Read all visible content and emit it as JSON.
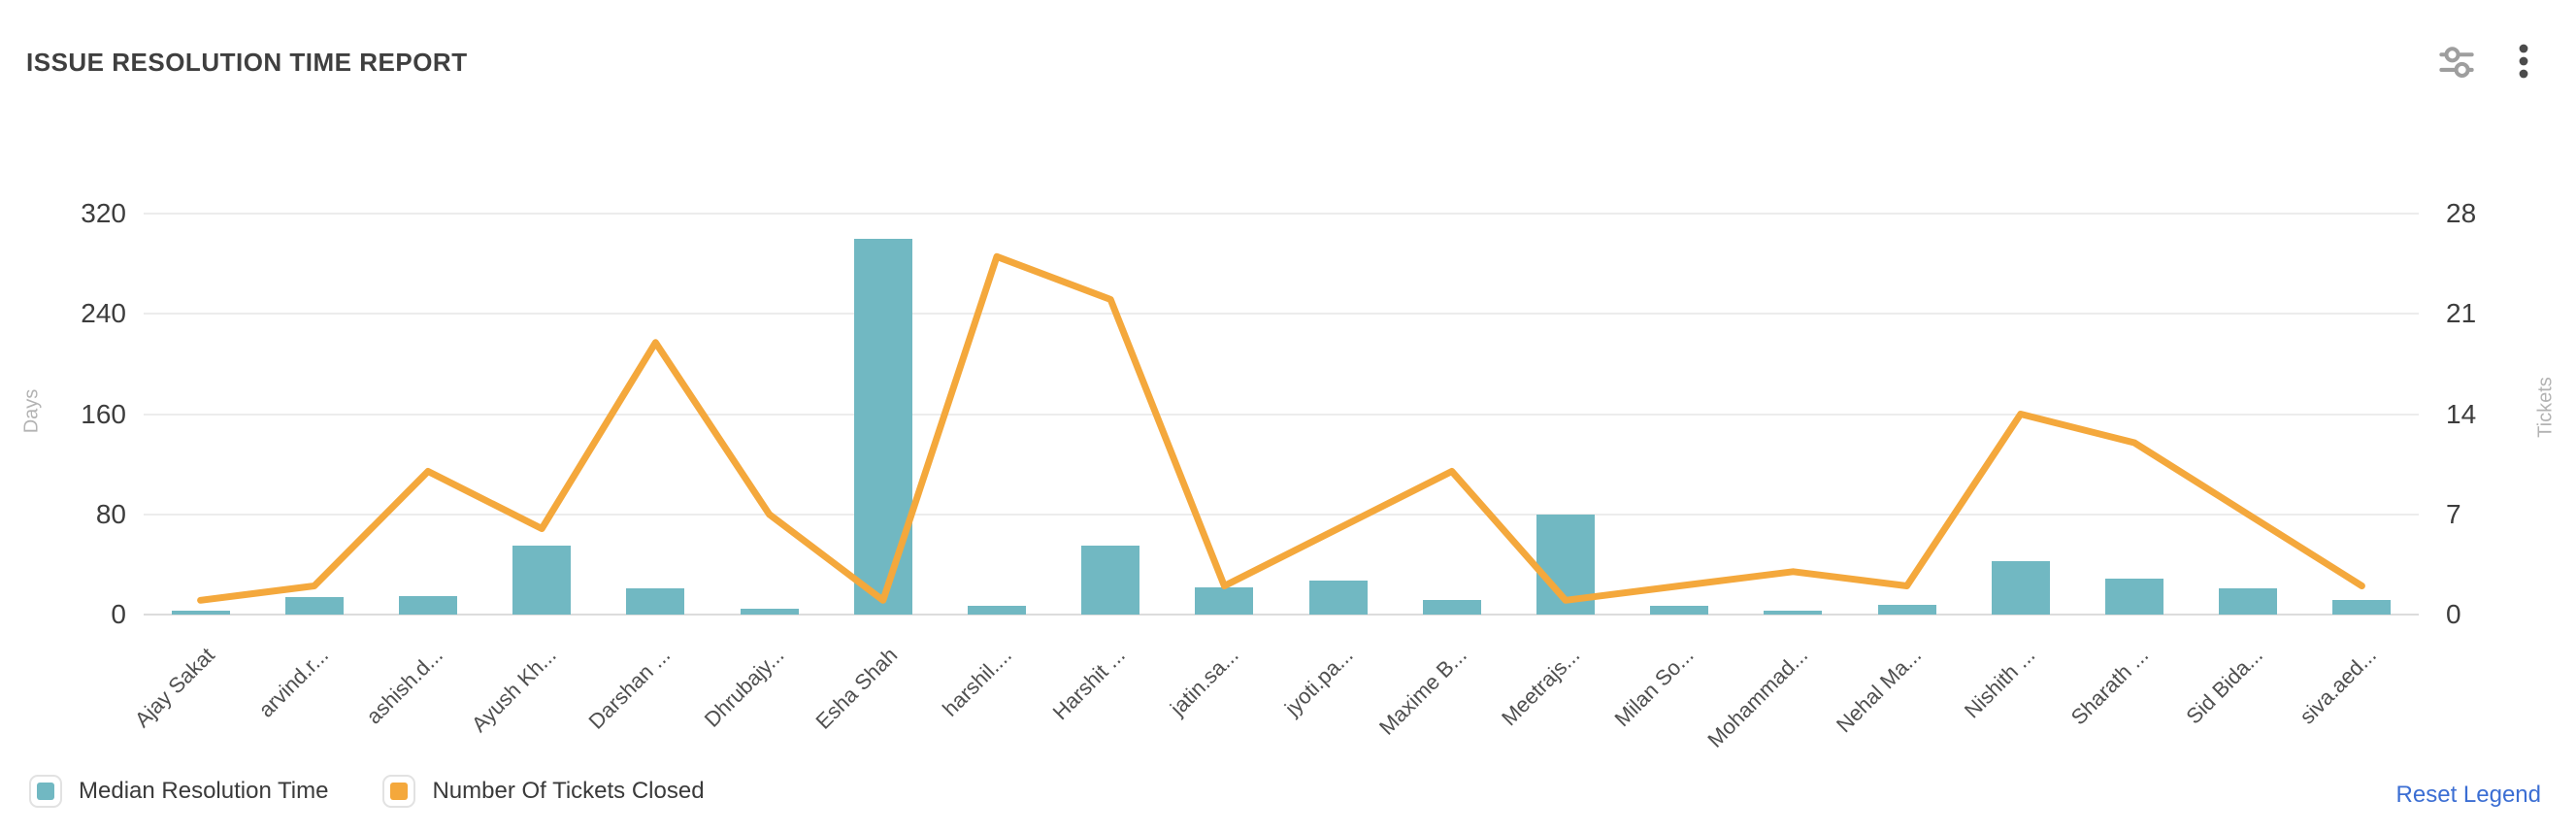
{
  "header": {
    "title": "ISSUE RESOLUTION TIME REPORT",
    "icons": [
      {
        "name": "chart-settings-icon"
      },
      {
        "name": "more-options-icon"
      }
    ]
  },
  "chart_data": {
    "type": "bar",
    "subtype": "bar+line dual axis",
    "title": "ISSUE RESOLUTION TIME REPORT",
    "categories": [
      "Ajay Sakat",
      "arvind.r...",
      "ashish.d...",
      "Ayush Kh...",
      "Darshan ...",
      "Dhrubajy...",
      "Esha Shah",
      "harshil....",
      "Harshit ...",
      "jatin.sa...",
      "jyoti.pa...",
      "Maxime B...",
      "Meetrajs...",
      "Milan So...",
      "Mohammad...",
      "Nehal Ma...",
      "Nishith ...",
      "Sharath ...",
      "Sid Bida...",
      "siva.aed..."
    ],
    "series": [
      {
        "name": "Median Resolution Time",
        "type": "bar",
        "y_axis": "left",
        "color": "#71B8C2",
        "values": [
          3,
          14,
          15,
          55,
          21,
          5,
          300,
          7,
          55,
          22,
          27,
          12,
          80,
          7,
          3,
          8,
          43,
          29,
          21,
          12
        ]
      },
      {
        "name": "Number Of Tickets Closed",
        "type": "line",
        "y_axis": "right",
        "color": "#F4A83C",
        "values": [
          1,
          2,
          10,
          6,
          19,
          7,
          1,
          25,
          22,
          2,
          6,
          10,
          1,
          2,
          3,
          2,
          14,
          12,
          7,
          2
        ]
      }
    ],
    "left_axis": {
      "title": "Days",
      "ticks": [
        0,
        80,
        160,
        240,
        320
      ],
      "min": 0,
      "max": 320
    },
    "right_axis": {
      "title": "Tickets",
      "ticks": [
        0,
        7,
        14,
        21,
        28
      ],
      "min": 0,
      "max": 28
    },
    "grid": true,
    "legend_position": "bottom"
  },
  "legend": {
    "items": [
      {
        "label": "Median Resolution Time",
        "color": "#71B8C2"
      },
      {
        "label": "Number Of Tickets Closed",
        "color": "#F4A83C"
      }
    ],
    "reset_label": "Reset Legend"
  },
  "colors": {
    "reset_link": "#3B6ED3",
    "gridline": "#ececec",
    "axis_tick_text": "#3d3d3d",
    "axis_title_text": "#b3b3b3",
    "x_label_text": "#4f4f4f"
  }
}
